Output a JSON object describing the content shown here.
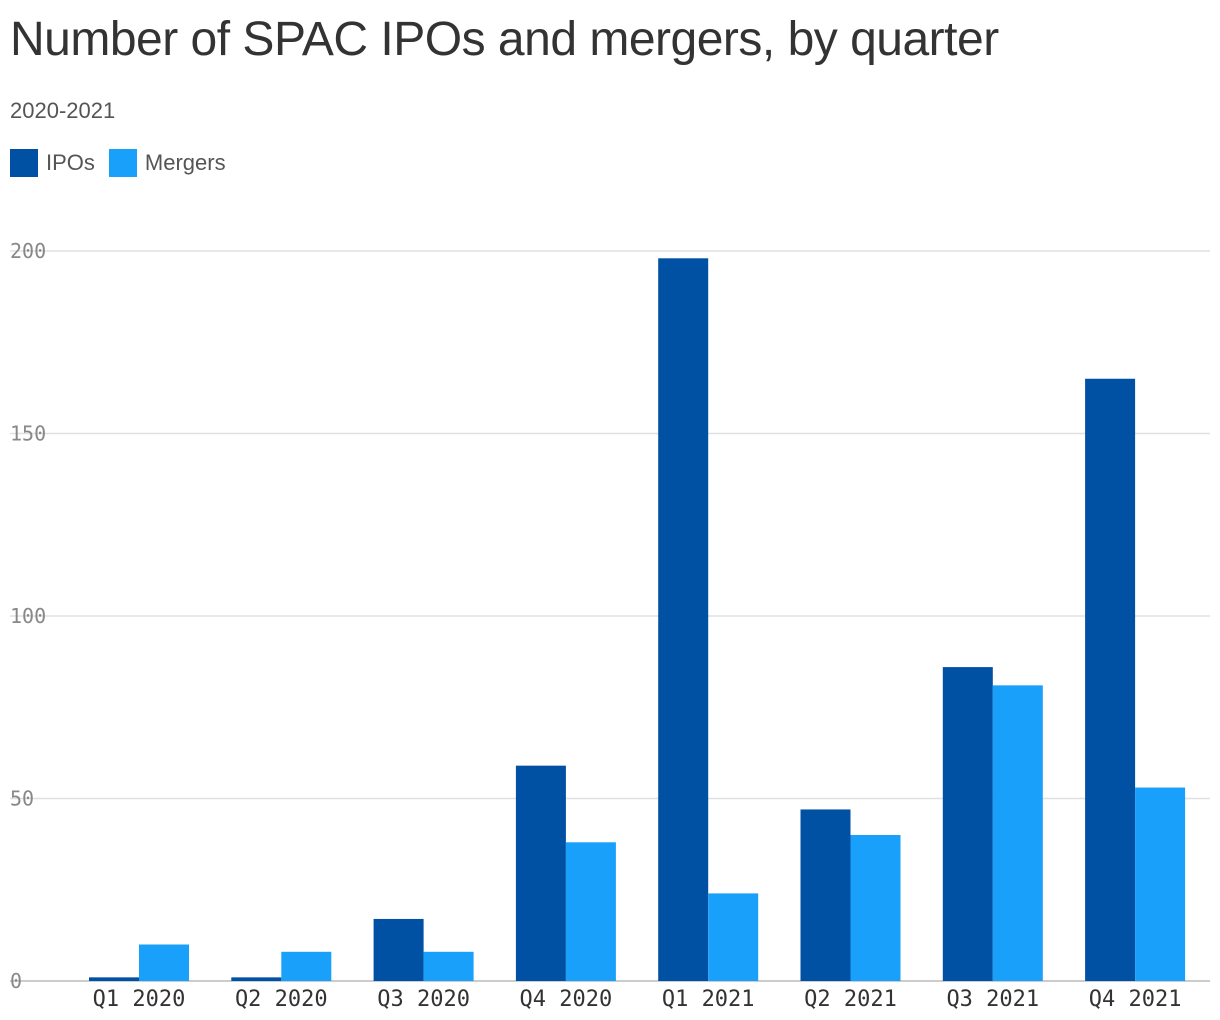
{
  "chart_data": {
    "type": "bar",
    "title": "Number of SPAC IPOs and mergers, by quarter",
    "subtitle": "2020-2021",
    "categories": [
      "Q1 2020",
      "Q2 2020",
      "Q3 2020",
      "Q4 2020",
      "Q1 2021",
      "Q2 2021",
      "Q3 2021",
      "Q4 2021"
    ],
    "series": [
      {
        "name": "IPOs",
        "color": "#0050a4",
        "values": [
          1,
          1,
          17,
          59,
          198,
          47,
          86,
          165
        ]
      },
      {
        "name": "Mergers",
        "color": "#18a0fb",
        "values": [
          10,
          8,
          8,
          38,
          24,
          40,
          81,
          53
        ]
      }
    ],
    "xlabel": "",
    "ylabel": "",
    "ylim": [
      0,
      200
    ],
    "yticks": [
      0,
      50,
      100,
      150,
      200
    ],
    "grid": true,
    "legend": "top-left"
  }
}
